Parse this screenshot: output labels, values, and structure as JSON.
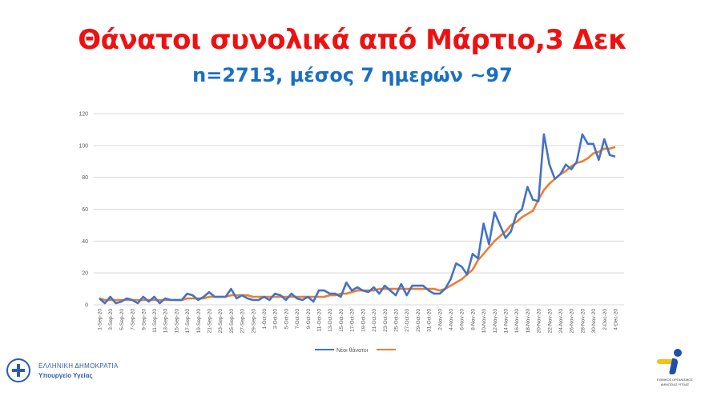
{
  "header": {
    "title": "Θάνατοι συνολικά από Μάρτιο,3 Δεκ",
    "subtitle": "n=2713, μέσος 7 ημερών ~97"
  },
  "logos": {
    "left_line1": "ΕΛΛΗΝΙΚΗ ΔΗΜΟΚΡΑΤΙΑ",
    "left_line2": "Υπουργείο Υγείας",
    "right_line1": "ΕΘΝΙΚΟΣ ΟΡΓΑΝΙΣΜΟΣ",
    "right_line2": "ΔΗΜΟΣΙΑΣ ΥΓΕΙΑΣ"
  },
  "colors": {
    "title": "#ee1111",
    "subtitle": "#1a6fc4",
    "series_daily": "#4472c4",
    "series_avg": "#ed7d31",
    "grid": "#d9d9d9",
    "tick_text": "#595959"
  },
  "chart_data": {
    "type": "line",
    "title": "",
    "xlabel": "",
    "ylabel": "",
    "ylim": [
      0,
      120
    ],
    "yticks": [
      0,
      20,
      40,
      60,
      80,
      100,
      120
    ],
    "grid": true,
    "legend_position": "bottom",
    "x_label_step": 2,
    "categories": [
      "1-Sep-20",
      "2-Sep-20",
      "3-Sep-20",
      "4-Sep-20",
      "5-Sep-20",
      "6-Sep-20",
      "7-Sep-20",
      "8-Sep-20",
      "9-Sep-20",
      "10-Sep-20",
      "11-Sep-20",
      "12-Sep-20",
      "13-Sep-20",
      "14-Sep-20",
      "15-Sep-20",
      "16-Sep-20",
      "17-Sep-20",
      "18-Sep-20",
      "19-Sep-20",
      "20-Sep-20",
      "21-Sep-20",
      "22-Sep-20",
      "23-Sep-20",
      "24-Sep-20",
      "25-Sep-20",
      "26-Sep-20",
      "27-Sep-20",
      "28-Sep-20",
      "29-Sep-20",
      "30-Sep-20",
      "1-Oct-20",
      "2-Oct-20",
      "3-Oct-20",
      "4-Oct-20",
      "5-Oct-20",
      "6-Oct-20",
      "7-Oct-20",
      "8-Oct-20",
      "9-Oct-20",
      "10-Oct-20",
      "11-Oct-20",
      "12-Oct-20",
      "13-Oct-20",
      "14-Oct-20",
      "15-Oct-20",
      "16-Oct-20",
      "17-Oct-20",
      "18-Oct-20",
      "19-Oct-20",
      "20-Oct-20",
      "21-Oct-20",
      "22-Oct-20",
      "23-Oct-20",
      "24-Oct-20",
      "25-Oct-20",
      "26-Oct-20",
      "27-Oct-20",
      "28-Oct-20",
      "29-Oct-20",
      "30-Oct-20",
      "31-Oct-20",
      "1-Nov-20",
      "2-Nov-20",
      "3-Nov-20",
      "4-Nov-20",
      "5-Nov-20",
      "6-Nov-20",
      "7-Nov-20",
      "8-Nov-20",
      "9-Nov-20",
      "10-Nov-20",
      "11-Nov-20",
      "12-Nov-20",
      "13-Nov-20",
      "14-Nov-20",
      "15-Nov-20",
      "16-Nov-20",
      "17-Nov-20",
      "18-Nov-20",
      "19-Nov-20",
      "20-Nov-20",
      "21-Nov-20",
      "22-Nov-20",
      "23-Nov-20",
      "24-Nov-20",
      "25-Nov-20",
      "26-Nov-20",
      "27-Nov-20",
      "28-Nov-20",
      "29-Nov-20",
      "30-Nov-20",
      "1-Dec-20",
      "2-Dec-20",
      "3-Dec-20",
      "4-Dec-20"
    ],
    "series": [
      {
        "name": "Νέοι θάνατοι",
        "color": "#4472c4",
        "values": [
          4,
          1,
          5,
          1,
          2,
          4,
          3,
          1,
          5,
          2,
          5,
          1,
          4,
          3,
          3,
          3,
          7,
          6,
          3,
          5,
          8,
          5,
          5,
          5,
          10,
          4,
          6,
          4,
          3,
          3,
          5,
          3,
          7,
          6,
          3,
          7,
          4,
          3,
          5,
          2,
          9,
          9,
          7,
          7,
          5,
          14,
          9,
          11,
          9,
          8,
          11,
          7,
          12,
          9,
          6,
          13,
          6,
          12,
          12,
          12,
          9,
          7,
          7,
          10,
          16,
          26,
          24,
          19,
          32,
          29,
          51,
          38,
          58,
          50,
          42,
          46,
          57,
          60,
          74,
          66,
          65,
          107,
          88,
          79,
          82,
          88,
          85,
          90,
          107,
          101,
          101,
          91,
          104,
          94,
          93
        ]
      },
      {
        "name": "",
        "color": "#ed7d31",
        "values": [
          4,
          3,
          3,
          3,
          3,
          3,
          3,
          3,
          3,
          3,
          3,
          3,
          3,
          3,
          3,
          3,
          4,
          4,
          4,
          4,
          5,
          5,
          5,
          5,
          6,
          6,
          6,
          6,
          5,
          5,
          5,
          5,
          5,
          5,
          5,
          5,
          5,
          5,
          5,
          5,
          5,
          5,
          6,
          6,
          7,
          7,
          8,
          9,
          9,
          9,
          9,
          10,
          10,
          10,
          10,
          10,
          10,
          10,
          10,
          10,
          10,
          10,
          9,
          10,
          12,
          14,
          16,
          19,
          22,
          28,
          32,
          36,
          40,
          43,
          46,
          50,
          52,
          55,
          57,
          59,
          66,
          72,
          76,
          79,
          82,
          84,
          87,
          89,
          90,
          92,
          95,
          96,
          98,
          98,
          99
        ]
      }
    ]
  }
}
